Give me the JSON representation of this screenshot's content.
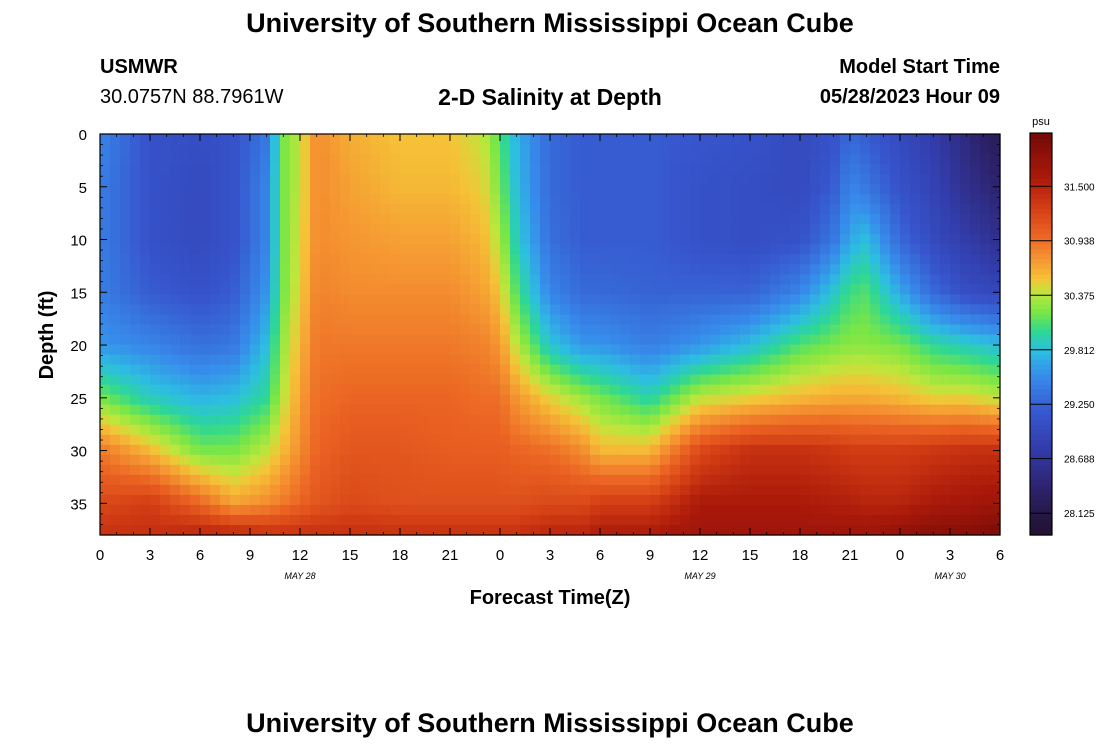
{
  "header": {
    "title": "University of Southern Mississippi Ocean Cube",
    "station": "USMWR",
    "coords": "30.0757N  88.7961W",
    "subtitle": "2-D Salinity at Depth",
    "model_start_label": "Model Start Time",
    "model_start_value": "05/28/2023 Hour 09"
  },
  "footer": {
    "title": "University of Southern Mississippi Ocean Cube"
  },
  "chart_data": {
    "type": "heatmap",
    "title": "2-D Salinity at Depth",
    "xlabel": "Forecast Time(Z)",
    "ylabel": "Depth (ft)",
    "xlim": [
      0,
      54
    ],
    "ylim": [
      0,
      38
    ],
    "x_tick_labels": [
      "0",
      "3",
      "6",
      "9",
      "12",
      "15",
      "18",
      "21",
      "0",
      "3",
      "6",
      "9",
      "12",
      "15",
      "18",
      "21",
      "0",
      "3",
      "6"
    ],
    "y_ticks": [
      0,
      5,
      10,
      15,
      20,
      25,
      30,
      35
    ],
    "date_labels": [
      {
        "label": "MAY 28",
        "hour": 12
      },
      {
        "label": "MAY 29",
        "hour": 36
      },
      {
        "label": "MAY 30",
        "hour": 51
      }
    ],
    "colorbar": {
      "unit": "psu",
      "min": 27.9,
      "max": 32.05,
      "ticks": [
        "31.500",
        "30.938",
        "30.375",
        "29.812",
        "29.250",
        "28.688",
        "28.125"
      ],
      "tick_values": [
        31.5,
        30.938,
        30.375,
        29.812,
        29.25,
        28.688,
        28.125
      ]
    },
    "depth_profile": [
      0,
      5,
      10,
      15,
      20,
      25,
      30,
      35,
      38
    ],
    "salinity_columns": [
      {
        "hour": 0,
        "salinity": [
          29.5,
          29.45,
          29.45,
          29.45,
          29.6,
          30.2,
          30.9,
          31.2,
          31.4
        ]
      },
      {
        "hour": 3,
        "salinity": [
          29.1,
          29.1,
          29.1,
          29.2,
          29.5,
          29.9,
          30.6,
          31.3,
          31.4
        ]
      },
      {
        "hour": 6,
        "salinity": [
          29.05,
          29.0,
          29.0,
          29.1,
          29.35,
          29.75,
          30.2,
          31.0,
          31.5
        ]
      },
      {
        "hour": 8,
        "salinity": [
          29.1,
          29.1,
          29.1,
          29.2,
          29.4,
          29.8,
          30.2,
          30.7,
          31.5
        ]
      },
      {
        "hour": 10,
        "salinity": [
          29.4,
          29.5,
          29.5,
          29.6,
          29.8,
          30.0,
          30.4,
          30.8,
          31.4
        ]
      },
      {
        "hour": 11,
        "salinity": [
          30.2,
          30.2,
          30.2,
          30.2,
          30.3,
          30.4,
          30.6,
          30.9,
          31.4
        ]
      },
      {
        "hour": 12,
        "salinity": [
          30.4,
          30.4,
          30.45,
          30.5,
          30.6,
          30.7,
          30.8,
          31.0,
          31.4
        ]
      },
      {
        "hour": 13,
        "salinity": [
          30.8,
          30.8,
          30.8,
          30.85,
          30.9,
          30.95,
          31.0,
          31.1,
          31.4
        ]
      },
      {
        "hour": 15,
        "salinity": [
          30.65,
          30.7,
          30.75,
          30.8,
          30.9,
          31.0,
          31.1,
          31.2,
          31.4
        ]
      },
      {
        "hour": 18,
        "salinity": [
          30.55,
          30.6,
          30.7,
          30.8,
          30.9,
          31.0,
          31.1,
          31.15,
          31.4
        ]
      },
      {
        "hour": 21,
        "salinity": [
          30.55,
          30.6,
          30.7,
          30.8,
          30.9,
          31.0,
          31.05,
          31.15,
          31.4
        ]
      },
      {
        "hour": 23,
        "salinity": [
          30.4,
          30.5,
          30.6,
          30.7,
          30.85,
          30.95,
          31.05,
          31.15,
          31.4
        ]
      },
      {
        "hour": 24,
        "salinity": [
          30.1,
          30.2,
          30.35,
          30.55,
          30.75,
          30.95,
          31.05,
          31.15,
          31.4
        ]
      },
      {
        "hour": 25,
        "salinity": [
          29.75,
          29.8,
          29.9,
          30.1,
          30.4,
          30.75,
          31.0,
          31.15,
          31.4
        ]
      },
      {
        "hour": 27,
        "salinity": [
          29.3,
          29.3,
          29.35,
          29.5,
          29.85,
          30.5,
          30.95,
          31.2,
          31.5
        ]
      },
      {
        "hour": 29,
        "salinity": [
          29.2,
          29.2,
          29.2,
          29.3,
          29.6,
          30.3,
          30.8,
          31.2,
          31.5
        ]
      },
      {
        "hour": 30,
        "salinity": [
          29.2,
          29.2,
          29.2,
          29.3,
          29.6,
          30.2,
          30.6,
          31.3,
          31.6
        ]
      },
      {
        "hour": 33,
        "salinity": [
          29.2,
          29.2,
          29.2,
          29.25,
          29.45,
          29.95,
          30.6,
          31.3,
          31.6
        ]
      },
      {
        "hour": 36,
        "salinity": [
          29.15,
          29.1,
          29.1,
          29.25,
          29.6,
          30.4,
          31.2,
          31.6,
          31.7
        ]
      },
      {
        "hour": 39,
        "salinity": [
          29.1,
          29.05,
          29.05,
          29.25,
          29.8,
          30.5,
          31.4,
          31.6,
          31.7
        ]
      },
      {
        "hour": 42,
        "salinity": [
          29.0,
          29.0,
          29.1,
          29.5,
          30.1,
          30.6,
          31.4,
          31.6,
          31.7
        ]
      },
      {
        "hour": 44,
        "salinity": [
          29.1,
          29.2,
          29.4,
          29.85,
          30.2,
          30.65,
          31.35,
          31.55,
          31.7
        ]
      },
      {
        "hour": 45,
        "salinity": [
          29.3,
          29.5,
          29.7,
          30.05,
          30.25,
          30.65,
          31.3,
          31.55,
          31.7
        ]
      },
      {
        "hour": 46,
        "salinity": [
          29.2,
          29.4,
          29.8,
          30.1,
          30.25,
          30.65,
          31.3,
          31.5,
          31.7
        ]
      },
      {
        "hour": 48,
        "salinity": [
          29.0,
          29.1,
          29.3,
          29.7,
          30.2,
          30.6,
          31.3,
          31.5,
          31.8
        ]
      },
      {
        "hour": 50,
        "salinity": [
          28.8,
          28.9,
          29.0,
          29.3,
          30.0,
          30.5,
          31.35,
          31.6,
          31.9
        ]
      },
      {
        "hour": 52,
        "salinity": [
          28.5,
          28.6,
          28.8,
          29.05,
          29.9,
          30.5,
          31.4,
          31.65,
          31.9
        ]
      },
      {
        "hour": 54,
        "salinity": [
          28.2,
          28.4,
          28.6,
          28.95,
          29.8,
          30.4,
          31.4,
          31.7,
          32.0
        ]
      }
    ]
  }
}
